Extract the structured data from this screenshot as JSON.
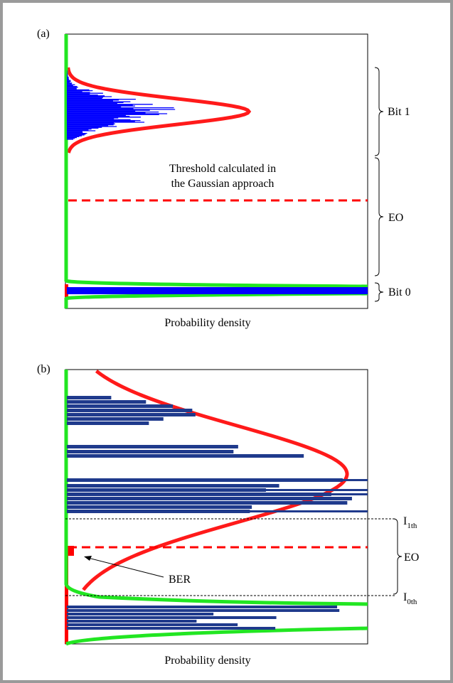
{
  "panel_a": {
    "label": "(a)",
    "bit1": "Bit 1",
    "threshold_lines": [
      "Threshold calculated in",
      "the Gaussian approach"
    ],
    "eo": "EO",
    "bit0": "Bit 0",
    "xlabel": "Probability density"
  },
  "panel_b": {
    "label": "(b)",
    "ber": "BER",
    "i1": {
      "main": "I",
      "sub": "1th"
    },
    "eo": "EO",
    "i0": {
      "main": "I",
      "sub": "0th"
    },
    "xlabel": "Probability density"
  }
}
